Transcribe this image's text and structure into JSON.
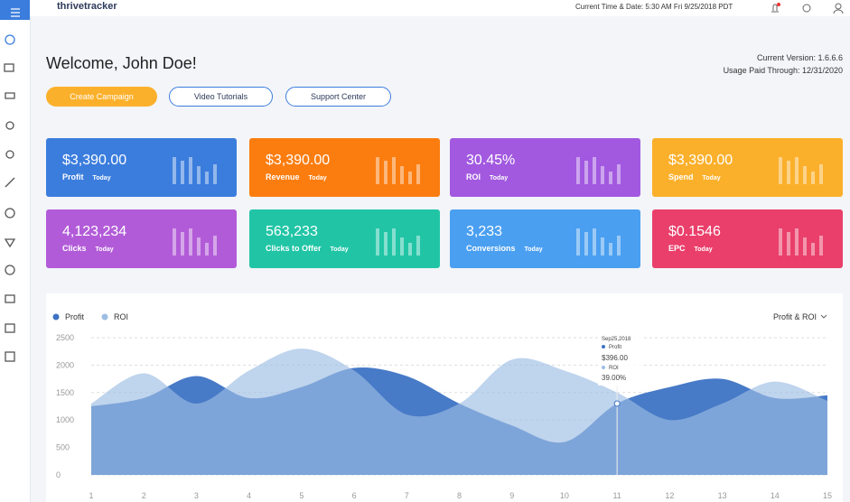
{
  "header": {
    "brand": "thrivetracker",
    "datetime": "Current Time & Date: 5:30 AM Fri 9/25/2018 PDT"
  },
  "welcome": "Welcome, John Doe!",
  "version": "Current Version: 1.6.6.6",
  "usage": "Usage Paid Through: 12/31/2020",
  "buttons": [
    "Create Campaign",
    "Video Tutorials",
    "Support Center"
  ],
  "cards": [
    {
      "value": "$3,390.00",
      "label": "Profit",
      "period": "Today",
      "color": "#3b7ddd"
    },
    {
      "value": "$3,390.00",
      "label": "Revenue",
      "period": "Today",
      "color": "#fb7d10"
    },
    {
      "value": "30.45%",
      "label": "ROI",
      "period": "Today",
      "color": "#a259e0"
    },
    {
      "value": "$3,390.00",
      "label": "Spend",
      "period": "Today",
      "color": "#fbb02b"
    },
    {
      "value": "4,123,234",
      "label": "Clicks",
      "period": "Today",
      "color": "#b25bd8"
    },
    {
      "value": "563,233",
      "label": "Clicks to Offer",
      "period": "Today",
      "color": "#21c5a6"
    },
    {
      "value": "3,233",
      "label": "Conversions",
      "period": "Today",
      "color": "#4a9ff0"
    },
    {
      "value": "$0.1546",
      "label": "EPC",
      "period": "Today",
      "color": "#ea3f6b"
    }
  ],
  "chart": {
    "type": "area",
    "selector": "Profit & ROI",
    "x": [
      1,
      2,
      3,
      4,
      5,
      6,
      7,
      8,
      9,
      10,
      11,
      12,
      13,
      14,
      15
    ],
    "xlim": [
      1,
      15
    ],
    "ylim": [
      0,
      2500
    ],
    "yticks": [
      0,
      500,
      1000,
      1500,
      2000,
      2500
    ],
    "grid": true,
    "series": [
      {
        "name": "Profit",
        "color": "#3d73c4",
        "values": [
          1250,
          1400,
          1800,
          1400,
          1600,
          1950,
          1800,
          1300,
          900,
          600,
          1300,
          1600,
          1750,
          1400,
          1450
        ]
      },
      {
        "name": "ROI",
        "color": "#9dbde3",
        "values": [
          1300,
          1850,
          1300,
          1900,
          2300,
          1900,
          1100,
          1300,
          2100,
          1900,
          1500,
          1000,
          1300,
          1700,
          1350
        ]
      }
    ],
    "tooltip": {
      "date": "Sep25,2018",
      "profit_label": "Profit",
      "profit": "$396.00",
      "roi_label": "ROI",
      "roi": "39.00%"
    }
  }
}
